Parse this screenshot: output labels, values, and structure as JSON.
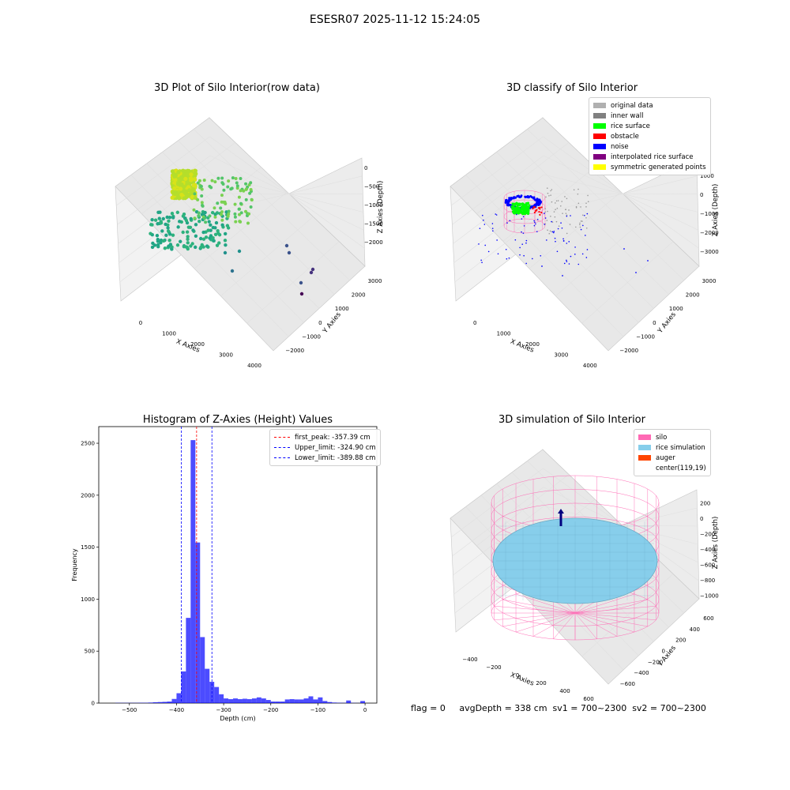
{
  "page_title": "ESESR07 2025-11-12 15:24:05",
  "colors": {
    "original": "#b0b0b0",
    "inner_wall": "#808080",
    "rice_surface": "#00ff00",
    "obstacle": "#ff0000",
    "noise": "#0000ff",
    "interpolated": "#800080",
    "symmetric": "#ffff00",
    "silo": "#ff69b4",
    "rice_sim": "#87ceeb",
    "auger": "#ff4500",
    "hist_bar": "#0000ff",
    "peak_line": "#ff0000",
    "limit_line": "#0000ff"
  },
  "panels": {
    "p1": {
      "title": "3D Plot of Silo Interior(row data)",
      "xlabel": "X Axies",
      "ylabel": "Y Axies",
      "zlabel": "Z Axies (Depth)",
      "xticks": [
        "0",
        "1000",
        "2000",
        "3000",
        "4000"
      ],
      "yticks": [
        "3000",
        "2000",
        "1000",
        "0",
        "−1000",
        "−2000"
      ],
      "zticks": [
        "0",
        "−500",
        "−1000",
        "−1500",
        "−2000"
      ]
    },
    "p2": {
      "title": "3D classify of Silo Interior",
      "xlabel": "X Axies",
      "ylabel": "Y Axies",
      "zlabel": "Z Axies (Depth)",
      "xticks": [
        "0",
        "1000",
        "2000",
        "3000",
        "4000"
      ],
      "yticks": [
        "3000",
        "2000",
        "1000",
        "0",
        "−1000",
        "−2000"
      ],
      "zticks": [
        "1000",
        "0",
        "−1000",
        "−2000",
        "−3000"
      ],
      "legend": [
        {
          "label": "original data",
          "color": "#b0b0b0"
        },
        {
          "label": "inner wall",
          "color": "#808080"
        },
        {
          "label": "rice surface",
          "color": "#00ff00"
        },
        {
          "label": "obstacle",
          "color": "#ff0000"
        },
        {
          "label": "noise",
          "color": "#0000ff"
        },
        {
          "label": "interpolated rice surface",
          "color": "#800080"
        },
        {
          "label": "symmetric generated points",
          "color": "#ffff00"
        }
      ]
    },
    "p4": {
      "title": "3D simulation of Silo Interior",
      "xlabel": "X Axies",
      "ylabel": "Y Axies",
      "zlabel": "Z Axies (Depth)",
      "xticks": [
        "−400",
        "−200",
        "0",
        "200",
        "400",
        "600"
      ],
      "yticks": [
        "600",
        "400",
        "200",
        "0",
        "−200",
        "−400",
        "−600"
      ],
      "zticks": [
        "200",
        "0",
        "−200",
        "−400",
        "−600",
        "−800",
        "−1000"
      ],
      "legend": [
        {
          "label": "silo",
          "color": "#ff69b4"
        },
        {
          "label": "rice simulation",
          "color": "#87ceeb"
        },
        {
          "label": "auger",
          "color": "#ff4500"
        },
        {
          "label": "center(119,19)",
          "color": ""
        }
      ]
    }
  },
  "chart_data": [
    {
      "type": "histogram",
      "title": "Histogram of Z-Axies (Height) Values",
      "xlabel": "Depth (cm)",
      "ylabel": "Frequency",
      "xlim": [
        -565,
        25
      ],
      "ylim": [
        0,
        2660
      ],
      "xticks": [
        -500,
        -400,
        -300,
        -200,
        -100,
        0
      ],
      "yticks": [
        0,
        500,
        1000,
        1500,
        2000,
        2500
      ],
      "bin_width": 10,
      "bins": [
        {
          "x": -530,
          "count": 2
        },
        {
          "x": -520,
          "count": 2
        },
        {
          "x": -510,
          "count": 2
        },
        {
          "x": -500,
          "count": 2
        },
        {
          "x": -490,
          "count": 2
        },
        {
          "x": -480,
          "count": 3
        },
        {
          "x": -470,
          "count": 3
        },
        {
          "x": -460,
          "count": 5
        },
        {
          "x": -450,
          "count": 8
        },
        {
          "x": -440,
          "count": 10
        },
        {
          "x": -430,
          "count": 12
        },
        {
          "x": -420,
          "count": 15
        },
        {
          "x": -410,
          "count": 40
        },
        {
          "x": -400,
          "count": 95
        },
        {
          "x": -390,
          "count": 305
        },
        {
          "x": -380,
          "count": 820
        },
        {
          "x": -370,
          "count": 2530
        },
        {
          "x": -360,
          "count": 1545
        },
        {
          "x": -350,
          "count": 635
        },
        {
          "x": -340,
          "count": 330
        },
        {
          "x": -330,
          "count": 205
        },
        {
          "x": -320,
          "count": 155
        },
        {
          "x": -310,
          "count": 85
        },
        {
          "x": -300,
          "count": 45
        },
        {
          "x": -290,
          "count": 38
        },
        {
          "x": -280,
          "count": 45
        },
        {
          "x": -270,
          "count": 38
        },
        {
          "x": -260,
          "count": 42
        },
        {
          "x": -250,
          "count": 38
        },
        {
          "x": -240,
          "count": 45
        },
        {
          "x": -230,
          "count": 55
        },
        {
          "x": -220,
          "count": 45
        },
        {
          "x": -210,
          "count": 30
        },
        {
          "x": -200,
          "count": 15
        },
        {
          "x": -190,
          "count": 15
        },
        {
          "x": -180,
          "count": 15
        },
        {
          "x": -170,
          "count": 35
        },
        {
          "x": -160,
          "count": 38
        },
        {
          "x": -150,
          "count": 35
        },
        {
          "x": -140,
          "count": 35
        },
        {
          "x": -130,
          "count": 45
        },
        {
          "x": -120,
          "count": 65
        },
        {
          "x": -110,
          "count": 35
        },
        {
          "x": -100,
          "count": 55
        },
        {
          "x": -90,
          "count": 20
        },
        {
          "x": -80,
          "count": 10
        },
        {
          "x": -70,
          "count": 5
        },
        {
          "x": -60,
          "count": 3
        },
        {
          "x": -50,
          "count": 2
        },
        {
          "x": -40,
          "count": 25
        },
        {
          "x": -30,
          "count": 2
        },
        {
          "x": -20,
          "count": 1
        },
        {
          "x": -10,
          "count": 20
        }
      ],
      "vlines": [
        {
          "name": "first_peak: -357.39 cm",
          "x": -357.39,
          "color": "#ff0000"
        },
        {
          "name": "Upper_limit: -324.90 cm",
          "x": -324.9,
          "color": "#0000ff"
        },
        {
          "name": "Lower_limit: -389.88 cm",
          "x": -389.88,
          "color": "#0000ff"
        }
      ],
      "legend_position": "upper right"
    }
  ],
  "footer": {
    "text": "flag = 0     avgDepth = 338 cm  sv1 = 700~2300  sv2 = 700~2300"
  }
}
